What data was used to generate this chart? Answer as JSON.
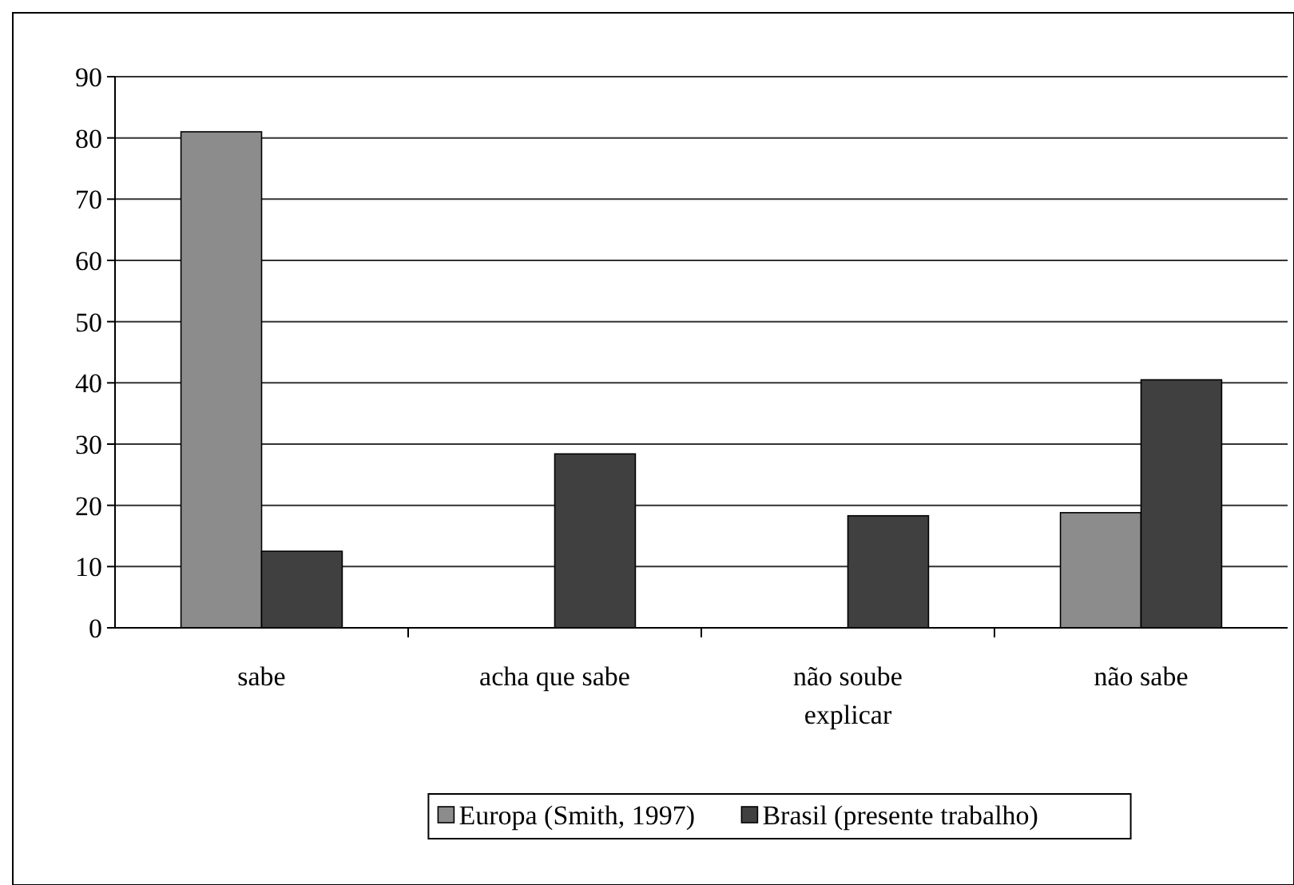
{
  "chart_data": {
    "type": "bar",
    "categories": [
      "sabe",
      "acha que sabe",
      "não soube explicar",
      "não sabe"
    ],
    "series": [
      {
        "name": "Europa (Smith, 1997)",
        "color": "#8c8c8c",
        "values": [
          81,
          0,
          0,
          18.8
        ]
      },
      {
        "name": "Brasil (presente trabalho)",
        "color": "#404040",
        "values": [
          12.5,
          28.4,
          18.3,
          40.5
        ]
      }
    ],
    "ylim": [
      0,
      90
    ],
    "yticks": [
      0,
      10,
      20,
      30,
      40,
      50,
      60,
      70,
      80,
      90
    ],
    "grid": "y",
    "legend": "bottom"
  }
}
